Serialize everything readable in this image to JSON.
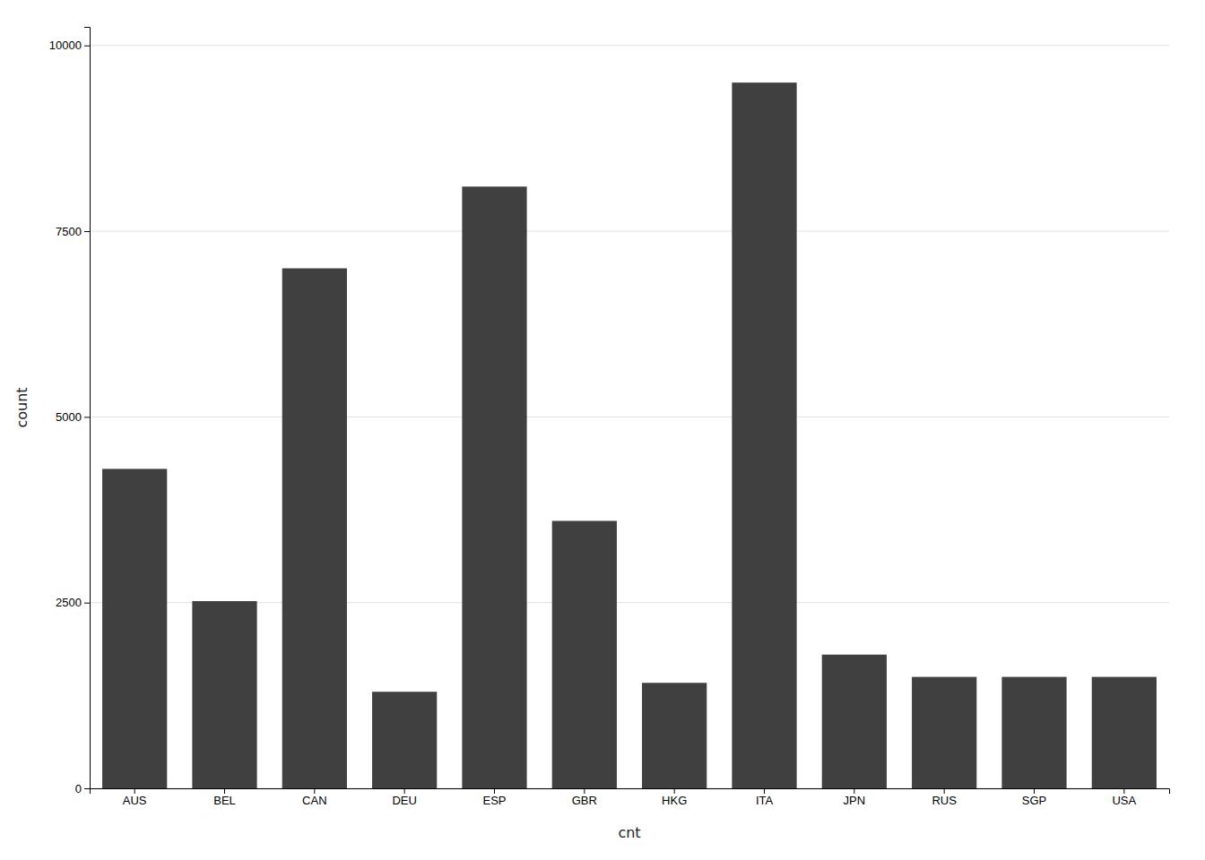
{
  "chart_data": {
    "type": "bar",
    "xlabel": "cnt",
    "ylabel": "count",
    "categories": [
      "AUS",
      "BEL",
      "CAN",
      "DEU",
      "ESP",
      "GBR",
      "HKG",
      "ITA",
      "JPN",
      "RUS",
      "SGP",
      "USA"
    ],
    "values": [
      4300,
      2520,
      7000,
      1300,
      8100,
      3600,
      1420,
      9500,
      1800,
      1500,
      1500,
      1500
    ],
    "color": "#404040",
    "ylim": [
      0,
      10250
    ],
    "yticks": [
      0,
      2500,
      5000,
      7500,
      10000
    ],
    "grid": true
  }
}
